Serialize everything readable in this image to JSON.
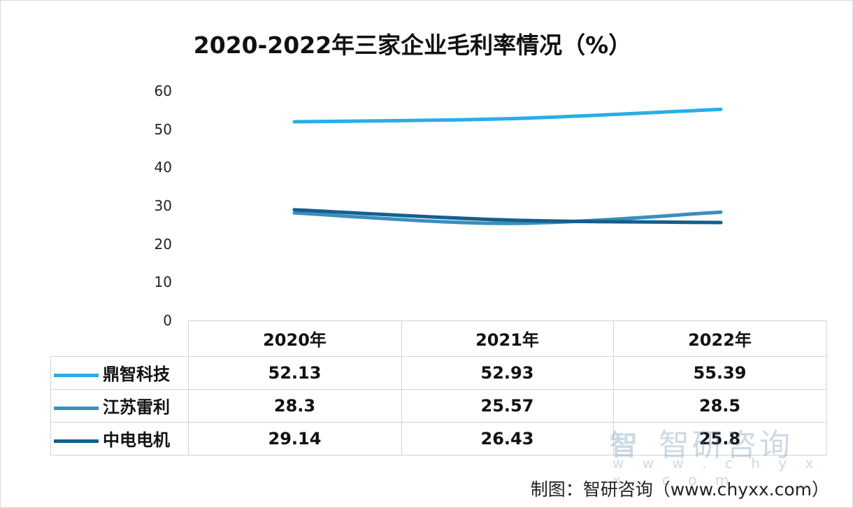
{
  "chart_data": {
    "type": "line",
    "title": "2020-2022年三家企业毛利率情况（%）",
    "categories": [
      "2020年",
      "2021年",
      "2022年"
    ],
    "ylim": [
      0,
      60
    ],
    "yticks": [
      "0",
      "10",
      "20",
      "30",
      "40",
      "50",
      "60"
    ],
    "series": [
      {
        "name": "鼎智科技",
        "values": [
          52.13,
          52.93,
          55.39
        ],
        "color": "#29aee6"
      },
      {
        "name": "江苏雷利",
        "values": [
          28.3,
          25.57,
          28.5
        ],
        "color": "#3a8fbd"
      },
      {
        "name": "中电电机",
        "values": [
          29.14,
          26.43,
          25.8
        ],
        "color": "#145f8e"
      }
    ],
    "value_labels": [
      [
        "52.13",
        "52.93",
        "55.39"
      ],
      [
        "28.3",
        "25.57",
        "28.5"
      ],
      [
        "29.14",
        "26.43",
        "25.8"
      ]
    ],
    "legend": "data-table",
    "grid": false
  },
  "watermark": {
    "logo": "智",
    "name": "智研咨询",
    "url": "w w w . c h y x x . c o m"
  },
  "source": "制图：智研咨询（www.chyxx.com）"
}
